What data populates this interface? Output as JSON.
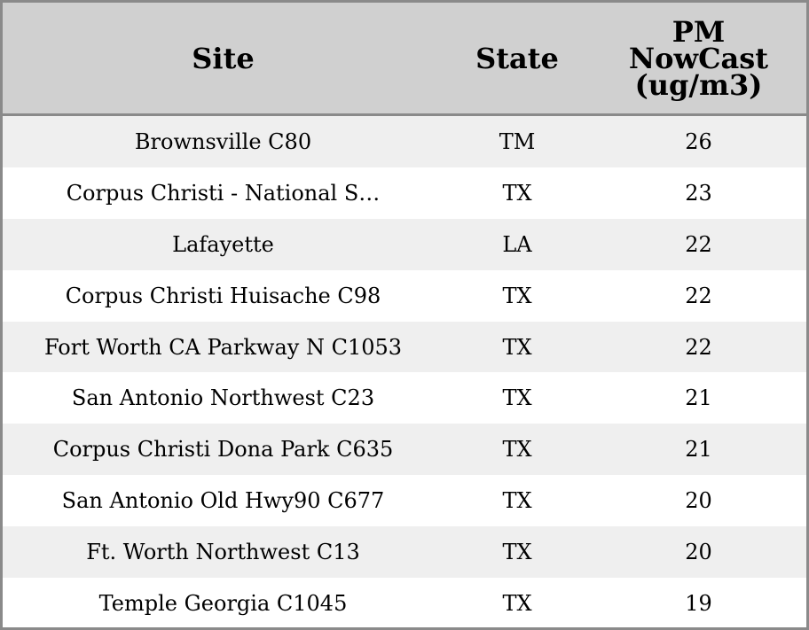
{
  "table": {
    "columns": [
      "Site",
      "State",
      "PM NowCast (ug/m3)"
    ],
    "rows": [
      [
        "Brownsville C80",
        "TM",
        26
      ],
      [
        "Corpus Christi - National S…",
        "TX",
        23
      ],
      [
        "Lafayette",
        "LA",
        22
      ],
      [
        "Corpus Christi Huisache C98",
        "TX",
        22
      ],
      [
        "Fort Worth CA Parkway N C1053",
        "TX",
        22
      ],
      [
        "San Antonio Northwest C23",
        "TX",
        21
      ],
      [
        "Corpus Christi Dona Park C635",
        "TX",
        21
      ],
      [
        "San Antonio Old Hwy90 C677",
        "TX",
        20
      ],
      [
        "Ft. Worth Northwest C13",
        "TX",
        20
      ],
      [
        "Temple Georgia C1045",
        "TX",
        19
      ]
    ]
  }
}
